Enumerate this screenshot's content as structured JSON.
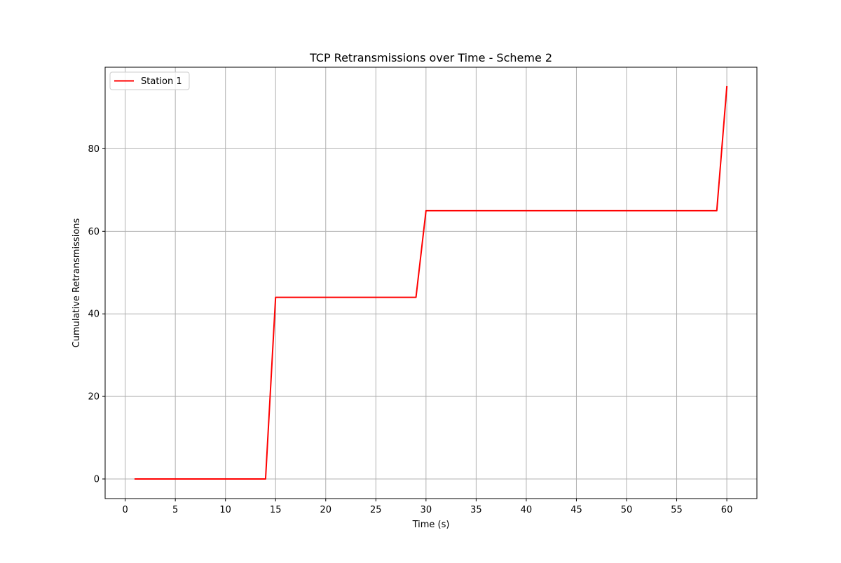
{
  "chart_data": {
    "type": "line",
    "title": "TCP Retransmissions over Time - Scheme 2",
    "xlabel": "Time (s)",
    "ylabel": "Cumulative Retransmissions",
    "xlim": [
      -2,
      63
    ],
    "ylim": [
      -4.75,
      99.75
    ],
    "xticks": [
      0,
      5,
      10,
      15,
      20,
      25,
      30,
      35,
      40,
      45,
      50,
      55,
      60
    ],
    "yticks": [
      0,
      20,
      40,
      60,
      80
    ],
    "grid": true,
    "legend": {
      "position": "top-left"
    },
    "series": [
      {
        "name": "Station 1",
        "color": "#ff0000",
        "x": [
          1,
          2,
          3,
          4,
          5,
          6,
          7,
          8,
          9,
          10,
          11,
          12,
          13,
          14,
          15,
          16,
          17,
          18,
          19,
          20,
          21,
          22,
          23,
          24,
          25,
          26,
          27,
          28,
          29,
          30,
          31,
          32,
          33,
          34,
          35,
          36,
          37,
          38,
          39,
          40,
          41,
          42,
          43,
          44,
          45,
          46,
          47,
          48,
          49,
          50,
          51,
          52,
          53,
          54,
          55,
          56,
          57,
          58,
          59,
          60
        ],
        "y": [
          0,
          0,
          0,
          0,
          0,
          0,
          0,
          0,
          0,
          0,
          0,
          0,
          0,
          0,
          44,
          44,
          44,
          44,
          44,
          44,
          44,
          44,
          44,
          44,
          44,
          44,
          44,
          44,
          44,
          65,
          65,
          65,
          65,
          65,
          65,
          65,
          65,
          65,
          65,
          65,
          65,
          65,
          65,
          65,
          65,
          65,
          65,
          65,
          65,
          65,
          65,
          65,
          65,
          65,
          65,
          65,
          65,
          65,
          65,
          95
        ]
      }
    ]
  }
}
